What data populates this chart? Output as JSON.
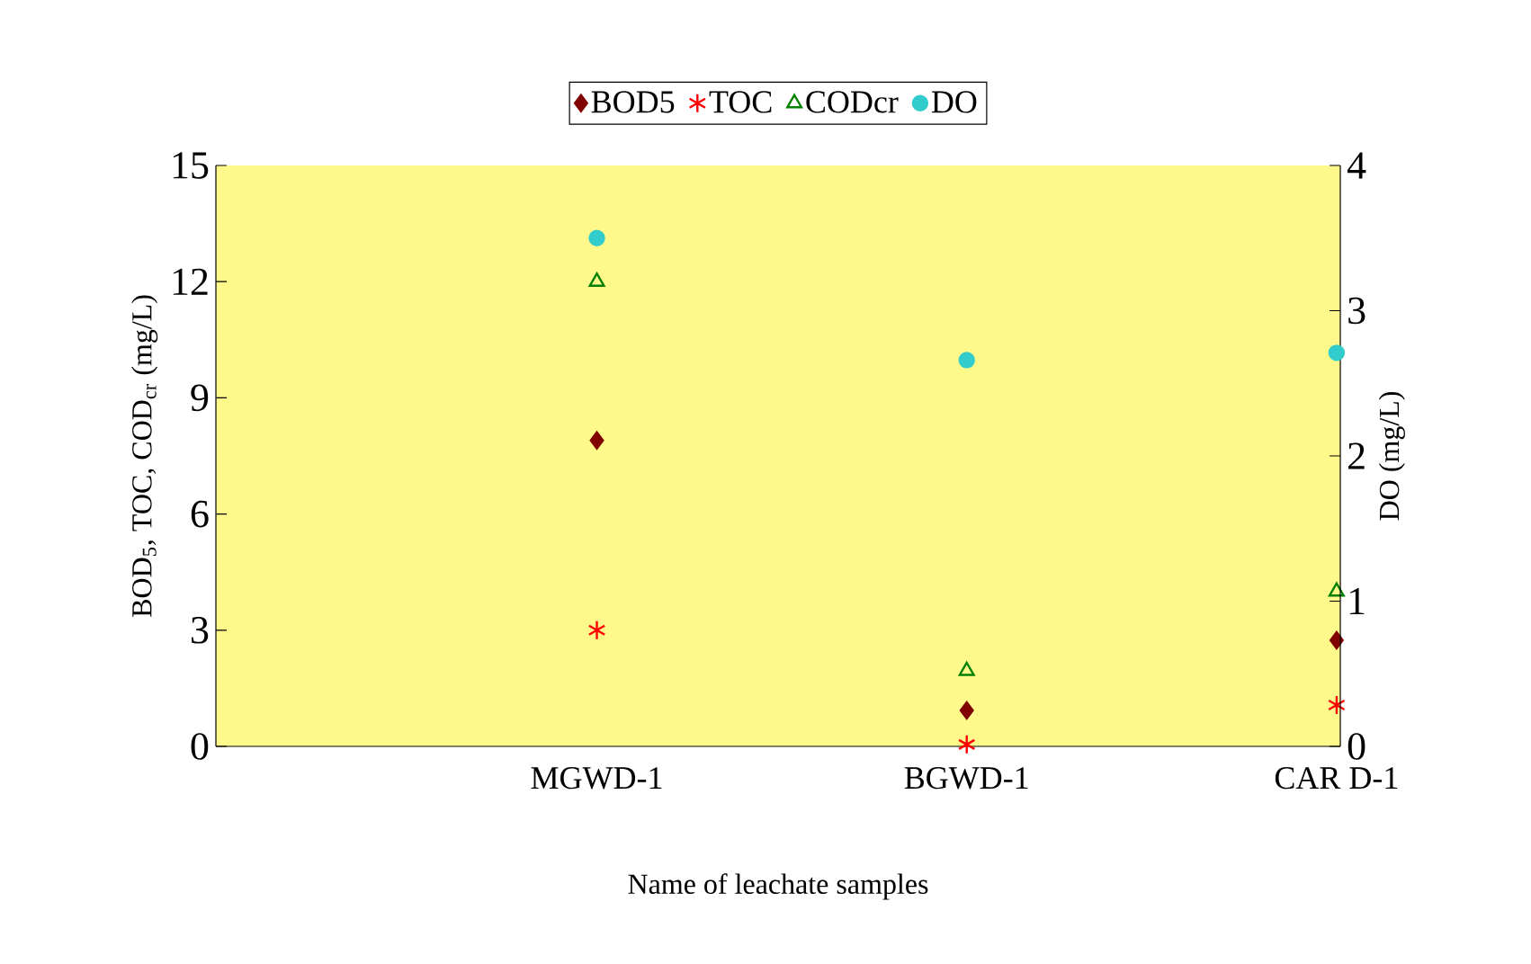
{
  "chart_data": {
    "type": "scatter",
    "xlabel": "Name of leachate samples",
    "ylabel": "BOD$_{5}$, TOC, COD$_{cr}$ (mg/L)",
    "y2label": "DO (mg/L)",
    "categories": [
      "MGWD-1",
      "BGWD-1",
      "CAR D-1"
    ],
    "series": [
      {
        "name": "BOD5",
        "color": "#800000",
        "marker": "diamond",
        "values": [
          7.9,
          0.93,
          2.74
        ]
      },
      {
        "name": "TOC",
        "color": "#ff0000",
        "marker": "cross",
        "values": [
          3.0,
          0.05,
          1.07
        ]
      },
      {
        "name": "CODcr",
        "color": "#008000",
        "marker": "triangle",
        "values": [
          12.0,
          1.95,
          4.0
        ]
      },
      {
        "name": "DO",
        "color": "#33cccc",
        "marker": "circle",
        "axis": "y2",
        "values": [
          3.5,
          2.66,
          2.71
        ]
      }
    ],
    "ylim": [
      0,
      15
    ],
    "yticks": [
      0,
      3,
      6,
      9,
      12,
      15
    ],
    "y2lim": [
      0,
      4
    ],
    "y2ticks": [
      0,
      1,
      2,
      3,
      4
    ],
    "grid": false,
    "legend": "top"
  }
}
